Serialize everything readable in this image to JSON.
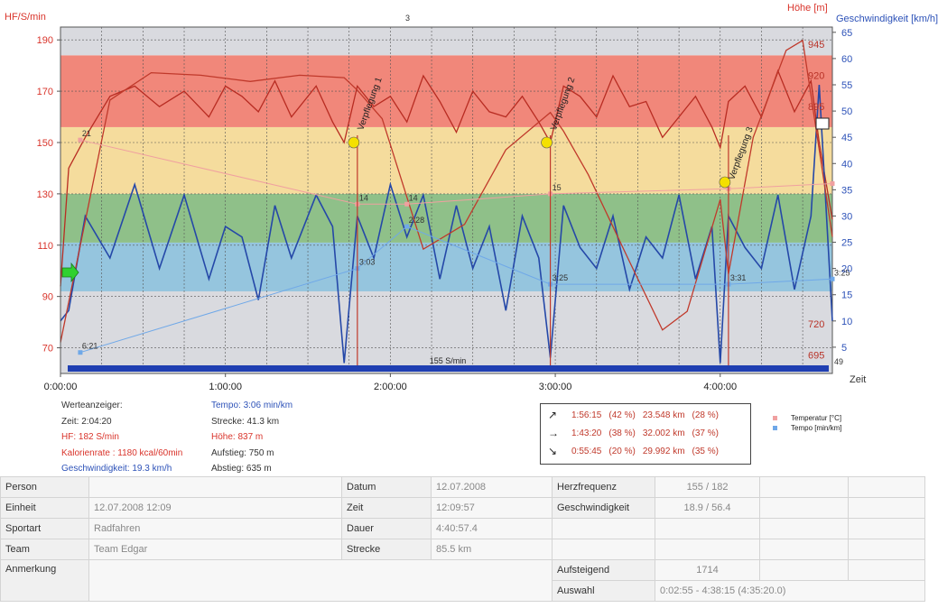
{
  "chart_data": {
    "type": "line",
    "axis_titles": {
      "left": "HF/S/min",
      "right_height": "Höhe [m]",
      "right_speed": "Geschwindigkeit [km/h]",
      "x": "Zeit"
    },
    "left_axis": {
      "min": 60,
      "max": 195,
      "ticks": [
        70,
        90,
        110,
        130,
        150,
        170,
        190
      ]
    },
    "height_axis": {
      "ticks": [
        695,
        720,
        745,
        770,
        795,
        820,
        845,
        870,
        895,
        920,
        945
      ],
      "visible_labels": [
        "945",
        "920",
        "895",
        "720",
        "695"
      ]
    },
    "speed_axis": {
      "min": 0,
      "max": 66,
      "ticks": [
        5,
        10,
        15,
        20,
        25,
        30,
        35,
        40,
        45,
        50,
        55,
        60,
        65
      ]
    },
    "x_axis": {
      "min_hours": 0,
      "max_hours": 4.68,
      "tick_labels": [
        "0:00:00",
        "1:00:00",
        "2:00:00",
        "3:00:00",
        "4:00:00"
      ]
    },
    "grid": true,
    "zones": [
      {
        "from": 60,
        "to": 92,
        "color": "#d9dadf"
      },
      {
        "from": 92,
        "to": 111,
        "color": "#95c5de"
      },
      {
        "from": 111,
        "to": 130,
        "color": "#8fc089"
      },
      {
        "from": 130,
        "to": 156,
        "color": "#f5dc9d"
      },
      {
        "from": 156,
        "to": 184,
        "color": "#f1877a"
      },
      {
        "from": 184,
        "to": 195,
        "color": "#d9dadf"
      }
    ],
    "series": [
      {
        "axis": "left",
        "color": "#b82c22",
        "x": [
          0,
          0.05,
          0.15,
          0.3,
          0.45,
          0.6,
          0.75,
          0.9,
          1.0,
          1.1,
          1.2,
          1.3,
          1.4,
          1.55,
          1.65,
          1.72,
          1.8,
          1.9,
          2.0,
          2.1,
          2.2,
          2.3,
          2.4,
          2.5,
          2.6,
          2.7,
          2.8,
          2.9,
          2.97,
          3.05,
          3.15,
          3.25,
          3.35,
          3.45,
          3.55,
          3.65,
          3.75,
          3.85,
          3.95,
          4.0,
          4.05,
          4.15,
          4.25,
          4.35,
          4.45,
          4.55,
          4.6,
          4.68
        ],
        "values": [
          94,
          140,
          152,
          168,
          172,
          164,
          170,
          160,
          172,
          168,
          162,
          174,
          160,
          172,
          158,
          150,
          172,
          164,
          168,
          158,
          176,
          166,
          154,
          170,
          162,
          160,
          168,
          158,
          150,
          172,
          168,
          160,
          176,
          164,
          166,
          152,
          160,
          168,
          156,
          148,
          166,
          172,
          160,
          178,
          162,
          174,
          150,
          120
        ]
      },
      {
        "axis": "speed",
        "color": "#2548a8",
        "x": [
          0,
          0.05,
          0.15,
          0.3,
          0.45,
          0.6,
          0.75,
          0.9,
          1.0,
          1.1,
          1.2,
          1.3,
          1.4,
          1.55,
          1.65,
          1.72,
          1.8,
          1.9,
          2.0,
          2.1,
          2.2,
          2.3,
          2.4,
          2.5,
          2.6,
          2.7,
          2.8,
          2.9,
          2.97,
          3.05,
          3.15,
          3.25,
          3.35,
          3.45,
          3.55,
          3.65,
          3.75,
          3.85,
          3.95,
          4.0,
          4.05,
          4.15,
          4.25,
          4.35,
          4.45,
          4.55,
          4.6,
          4.68
        ],
        "values": [
          10,
          12,
          30,
          22,
          36,
          20,
          34,
          18,
          28,
          26,
          14,
          32,
          22,
          34,
          28,
          2,
          30,
          22,
          36,
          26,
          34,
          18,
          32,
          20,
          28,
          12,
          30,
          22,
          3,
          32,
          24,
          20,
          30,
          16,
          26,
          22,
          34,
          18,
          28,
          2,
          30,
          24,
          20,
          34,
          16,
          30,
          55,
          10
        ]
      },
      {
        "axis": "height",
        "color": "#c0392b",
        "x": [
          0,
          0.3,
          0.55,
          0.85,
          1.15,
          1.45,
          1.72,
          1.8,
          1.95,
          2.2,
          2.45,
          2.7,
          2.97,
          3.05,
          3.2,
          3.45,
          3.65,
          3.8,
          4.0,
          4.05,
          4.2,
          4.4,
          4.5,
          4.68
        ],
        "values": [
          705,
          900,
          922,
          920,
          915,
          920,
          918,
          908,
          885,
          780,
          800,
          860,
          890,
          875,
          840,
          770,
          715,
          730,
          820,
          760,
          870,
          940,
          948,
          790
        ]
      },
      {
        "axis": "left",
        "name": "Temperatur [°C]",
        "color": "#f0a0a0",
        "x": [
          0.12,
          1.8,
          2.1,
          2.97,
          4.05,
          4.68
        ],
        "values": [
          151,
          126,
          126,
          130,
          132,
          134
        ]
      },
      {
        "axis": "speed",
        "name": "Tempo [min/km]",
        "color": "#6fa8e8",
        "x": [
          0.12,
          1.8,
          2.1,
          2.97,
          4.05,
          4.68
        ],
        "values": [
          4,
          20,
          28,
          17,
          17,
          18
        ]
      }
    ],
    "point_labels": [
      {
        "x": 0.12,
        "axis": "left",
        "y": 151,
        "text": "21",
        "color": "#333"
      },
      {
        "x": 0.12,
        "axis": "speed",
        "y": 4,
        "text": "6:21",
        "color": "#333"
      },
      {
        "x": 1.8,
        "axis": "left",
        "y": 126,
        "text": "14",
        "color": "#333"
      },
      {
        "x": 1.8,
        "axis": "speed",
        "y": 20,
        "text": "3:03",
        "color": "#333"
      },
      {
        "x": 2.1,
        "axis": "left",
        "y": 126,
        "text": "14",
        "color": "#333"
      },
      {
        "x": 2.1,
        "axis": "speed",
        "y": 28,
        "text": "2:28",
        "color": "#333"
      },
      {
        "x": 2.97,
        "axis": "left",
        "y": 130,
        "text": "15",
        "color": "#333"
      },
      {
        "x": 2.97,
        "axis": "speed",
        "y": 17,
        "text": "3:25",
        "color": "#333"
      },
      {
        "x": 4.05,
        "axis": "speed",
        "y": 17,
        "text": "3:31",
        "color": "#333"
      },
      {
        "x": 4.68,
        "axis": "speed",
        "y": 18,
        "text": "3:25",
        "color": "#333"
      },
      {
        "x": 4.68,
        "axis": "speed",
        "y": 1,
        "text": "49",
        "color": "#333"
      },
      {
        "x": 2.08,
        "axis": "left",
        "y": 196,
        "text": "3",
        "color": "#333"
      }
    ],
    "markers": [
      {
        "x": 1.8,
        "label": "Verpflegung 1"
      },
      {
        "x": 2.97,
        "label": "Verpflegung 2"
      },
      {
        "x": 4.05,
        "label": "Verpflegung 3"
      }
    ],
    "threshold_label": "155 S/min"
  },
  "info": {
    "left": [
      "Werteanzeiger:",
      "Zeit: 2:04:20",
      "HF: 182 S/min",
      "Kalorienrate : 1180 kcal/60min",
      "Geschwindigkeit: 19.3 km/h"
    ],
    "right": [
      "Tempo: 3:06 min/km",
      "Strecke: 41.3 km",
      "Höhe: 837 m",
      "Aufstieg: 750 m",
      "Abstieg: 635 m"
    ]
  },
  "stats": [
    {
      "arrow": "↗",
      "time": "1:56:15",
      "pct": "(42 %)",
      "dist": "23.548 km",
      "dpct": "(28 %)"
    },
    {
      "arrow": "→",
      "time": "1:43:20",
      "pct": "(38 %)",
      "dist": "32.002 km",
      "dpct": "(37 %)"
    },
    {
      "arrow": "↘",
      "time": "0:55:45",
      "pct": "(20 %)",
      "dist": "29.992 km",
      "dpct": "(35 %)"
    }
  ],
  "legend": [
    {
      "label": "Temperatur [°C]",
      "color": "#f0a0a0"
    },
    {
      "label": "Tempo [min/km]",
      "color": "#6fa8e8"
    }
  ],
  "table": {
    "person_label": "Person",
    "person_value": "",
    "datum_label": "Datum",
    "datum_value": "12.07.2008",
    "hf_label": "Herzfrequenz",
    "hf_value": "155 / 182",
    "einheit_label": "Einheit",
    "einheit_value": "12.07.2008 12:09",
    "zeit_label": "Zeit",
    "zeit_value": "12:09:57",
    "speed_label": "Geschwindigkeit",
    "speed_value": "18.9 / 56.4",
    "sport_label": "Sportart",
    "sport_value": "Radfahren",
    "dauer_label": "Dauer",
    "dauer_value": "4:40:57.4",
    "team_label": "Team",
    "team_value": "Team Edgar",
    "strecke_label": "Strecke",
    "strecke_value": "85.5 km",
    "anmerkung_label": "Anmerkung",
    "aufsteigend_label": "Aufsteigend",
    "aufsteigend_value": "1714",
    "auswahl_label": "Auswahl",
    "auswahl_value": "0:02:55 - 4:38:15 (4:35:20.0)"
  }
}
